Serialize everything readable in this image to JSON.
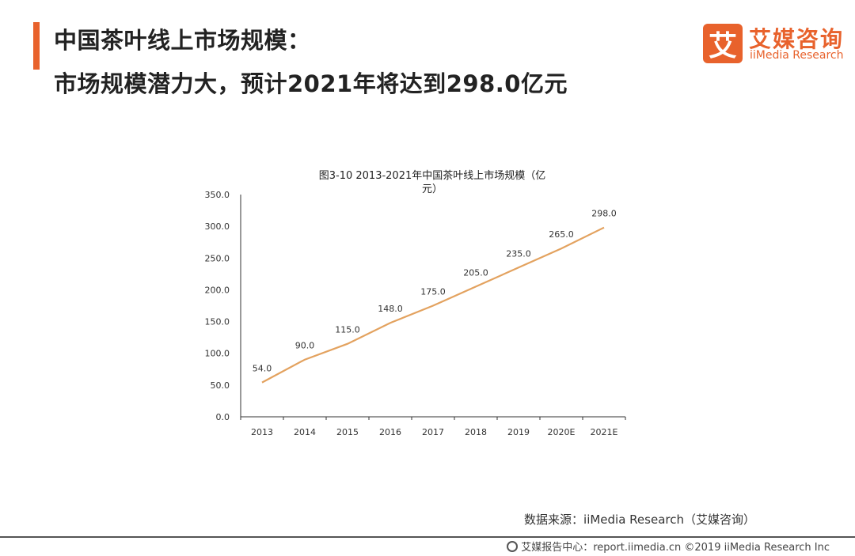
{
  "header": {
    "title_line1": "中国茶叶线上市场规模：",
    "title_line2": "市场规模潜力大，预计2021年将达到298.0亿元"
  },
  "logo": {
    "mark": "艾",
    "name_cn": "艾媒咨询",
    "name_en": "iiMedia Research"
  },
  "colors": {
    "accent": "#e8622c",
    "line": "#e3a25f"
  },
  "chart_data": {
    "type": "line",
    "title": "图3-10 2013-2021年中国茶叶线上市场规模（亿元）",
    "title_line1": "图3-10 2013-2021年中国茶叶线上市场规模（亿",
    "title_line2": "元）",
    "categories": [
      "2013",
      "2014",
      "2015",
      "2016",
      "2017",
      "2018",
      "2019",
      "2020E",
      "2021E"
    ],
    "values": [
      54.0,
      90.0,
      115.0,
      148.0,
      175.0,
      205.0,
      235.0,
      265.0,
      298.0
    ],
    "data_labels": [
      "54.0",
      "90.0",
      "115.0",
      "148.0",
      "175.0",
      "205.0",
      "235.0",
      "265.0",
      "298.0"
    ],
    "y_ticks": [
      "0.0",
      "50.0",
      "100.0",
      "150.0",
      "200.0",
      "250.0",
      "300.0",
      "350.0"
    ],
    "ylim": [
      0,
      350
    ],
    "xlabel": "",
    "ylabel": "",
    "grid": false,
    "legend": "none"
  },
  "footer": {
    "source": "数据来源：iiMedia Research（艾媒咨询）",
    "copyright": "艾媒报告中心：report.iimedia.cn ©2019 iiMedia Research Inc",
    "icon": "globe-icon"
  }
}
